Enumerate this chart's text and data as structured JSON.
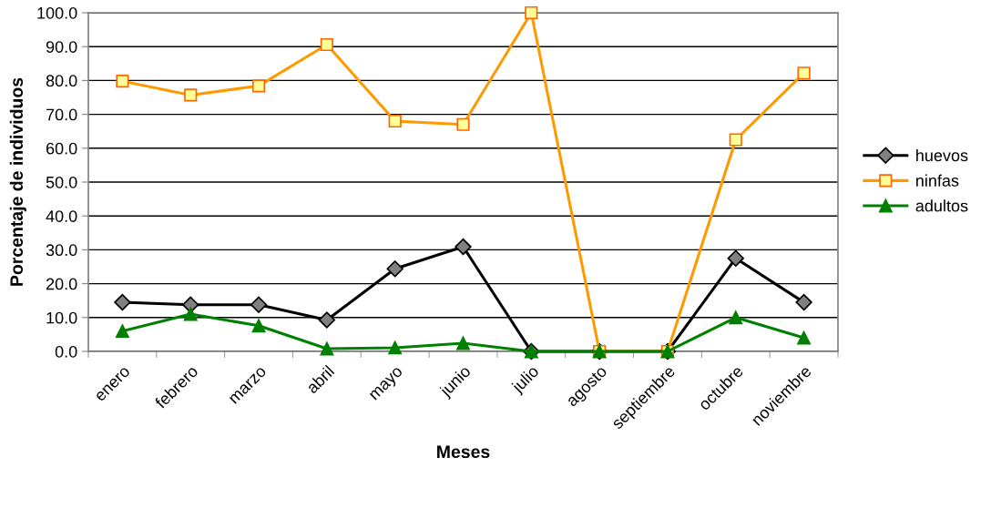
{
  "chart_data": {
    "type": "line",
    "xlabel": "Meses",
    "ylabel": "Porcentaje de individuos",
    "categories": [
      "enero",
      "febrero",
      "marzo",
      "abril",
      "mayo",
      "junio",
      "julio",
      "agosto",
      "septiembre",
      "octubre",
      "noviembre"
    ],
    "series": [
      {
        "name": "huevos",
        "color": "#000000",
        "marker": "diamond",
        "values": [
          14.5,
          13.8,
          13.8,
          9.3,
          24.4,
          30.9,
          0.0,
          0.0,
          0.0,
          27.5,
          14.5
        ]
      },
      {
        "name": "ninfas",
        "color": "#ff9900",
        "marker": "square",
        "values": [
          79.8,
          75.7,
          78.4,
          90.6,
          68.0,
          67.0,
          100.0,
          0.0,
          0.0,
          62.5,
          82.2
        ]
      },
      {
        "name": "adultos",
        "color": "#008000",
        "marker": "triangle",
        "values": [
          6.0,
          11.0,
          7.6,
          0.8,
          1.1,
          2.4,
          0.0,
          0.0,
          0.0,
          10.0,
          4.0
        ]
      }
    ],
    "ylim": [
      0,
      100
    ],
    "yticks": [
      {
        "value": 0,
        "label": "0.0"
      },
      {
        "value": 10,
        "label": "10.0"
      },
      {
        "value": 20,
        "label": "20.0"
      },
      {
        "value": 30,
        "label": "30.0"
      },
      {
        "value": 40,
        "label": "40.0"
      },
      {
        "value": 50,
        "label": "50.0"
      },
      {
        "value": 60,
        "label": "60.0"
      },
      {
        "value": 70,
        "label": "70.0"
      },
      {
        "value": 80,
        "label": "80.0"
      },
      {
        "value": 90,
        "label": "90.0"
      },
      {
        "value": 100,
        "label": "100.0"
      }
    ],
    "grid": "y",
    "legend": "right",
    "line_style": "solid"
  }
}
